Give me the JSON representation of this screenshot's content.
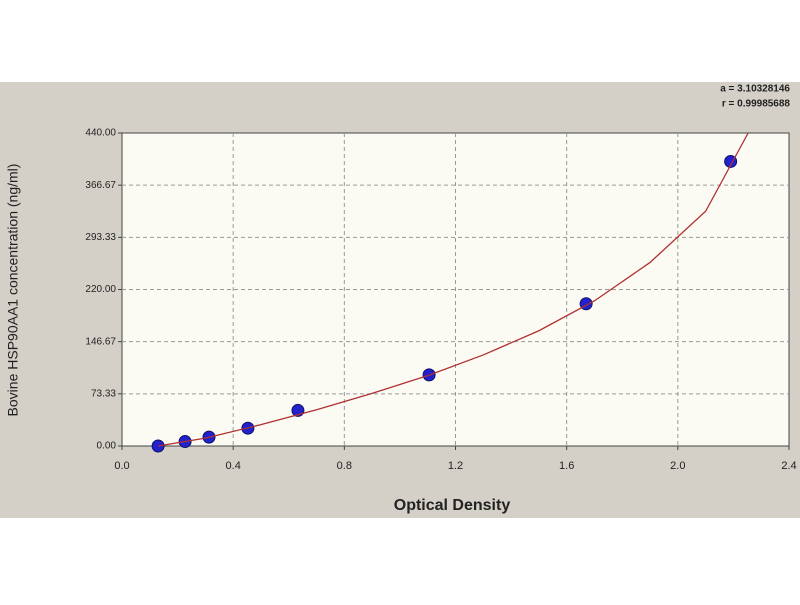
{
  "chart_data": {
    "type": "scatter",
    "xlabel": "Optical Density",
    "ylabel": "Bovine HSP90AA1 concentration (ng/ml)",
    "annotations": [
      "a = 3.10328146",
      "r = 0.99985688"
    ],
    "xlim": [
      0,
      2.4
    ],
    "xticks": [
      {
        "value": 0,
        "label": "0.0"
      },
      0.4,
      0.8,
      1.2,
      1.6,
      {
        "value": 2,
        "label": "2.0"
      },
      2.4
    ],
    "ylim": [
      0,
      440
    ],
    "yticks": [
      {
        "value": 0,
        "label": "0.00"
      },
      73.33,
      146.67,
      {
        "value": 220,
        "label": "220.00"
      },
      293.33,
      366.67,
      {
        "value": 440,
        "label": "440.00"
      }
    ],
    "grid": true,
    "series": [
      {
        "mode": "markers",
        "color": "#2222cc",
        "x": [
          0.13,
          0.227,
          0.313,
          0.453,
          0.633,
          1.105,
          1.67,
          2.19
        ],
        "values": [
          0,
          6.25,
          12.5,
          25,
          50,
          100,
          200,
          400
        ]
      },
      {
        "mode": "line",
        "color": "#b03030",
        "x": [
          0.13,
          0.3,
          0.5,
          0.7,
          0.9,
          1.1,
          1.3,
          1.5,
          1.7,
          1.9,
          2.1,
          2.253
        ],
        "values": [
          0,
          11,
          30,
          51,
          74,
          99,
          128,
          162,
          204,
          258,
          330,
          440
        ]
      }
    ]
  }
}
